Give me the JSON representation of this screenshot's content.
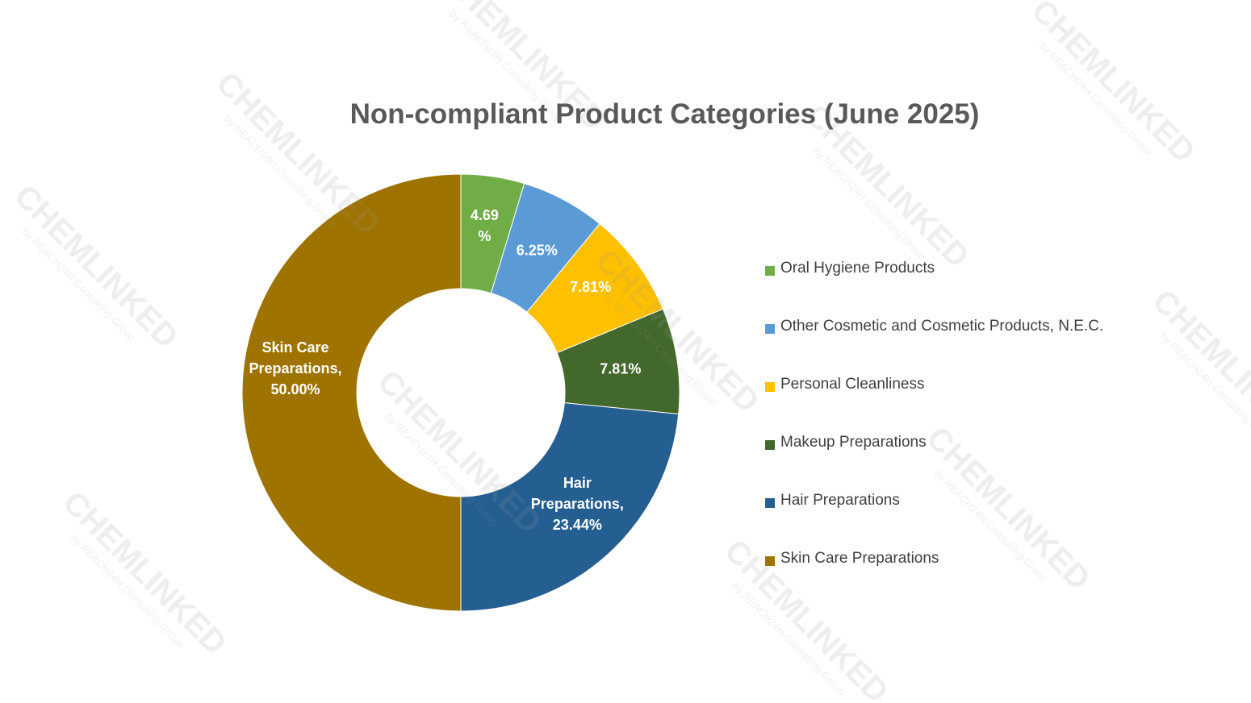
{
  "watermark": {
    "brand": "CHEMLINKED",
    "tagline": "by REACH24H Consulting Group"
  },
  "chart_data": {
    "type": "pie",
    "title": "Non-compliant Product Categories (June 2025)",
    "donut": true,
    "legend_position": "right",
    "slices": [
      {
        "name": "Oral Hygiene Products",
        "value": 4.69,
        "label": "4.69\n%",
        "color": "#70ad47",
        "label_color": "#ffffff"
      },
      {
        "name": "Other Cosmetic and Cosmetic Products, N.E.C.",
        "value": 6.25,
        "label": "6.25%",
        "color": "#5b9bd5",
        "label_color": "#ffffff"
      },
      {
        "name": "Personal Cleanliness",
        "value": 7.81,
        "label": "7.81%",
        "color": "#ffc000",
        "label_color": "#ffffff"
      },
      {
        "name": "Makeup Preparations",
        "value": 7.81,
        "label": "7.81%",
        "color": "#43682b",
        "label_color": "#ffffff"
      },
      {
        "name": "Hair Preparations",
        "value": 23.44,
        "label": "Hair\nPreparations,\n23.44%",
        "color": "#255e91",
        "label_color": "#ffffff"
      },
      {
        "name": "Skin Care Preparations",
        "value": 50.0,
        "label": "Skin Care\nPreparations,\n50.00%",
        "color": "#9e7300",
        "label_color": "#ffffff"
      }
    ]
  }
}
